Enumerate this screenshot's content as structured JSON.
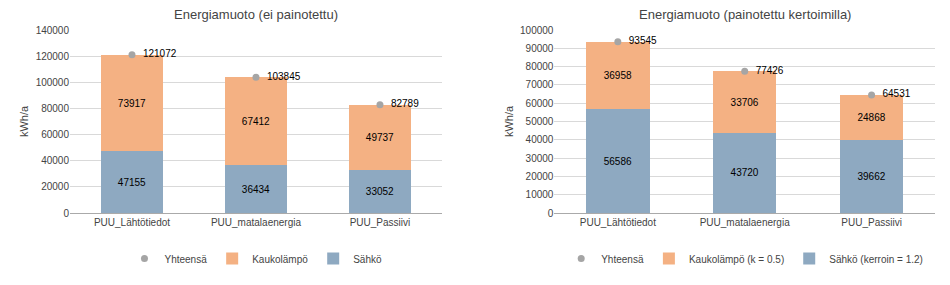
{
  "chart_data": [
    {
      "type": "bar",
      "stacked": true,
      "title": "Energiamuoto (ei painotettu)",
      "categories": [
        "PUU_Lähtötiedot",
        "PUU_matalaenergia",
        "PUU_Passiivi"
      ],
      "series": [
        {
          "name": "Sähkö",
          "type": "bar",
          "color": "#8EA9C1",
          "values": [
            47155,
            36434,
            33052
          ]
        },
        {
          "name": "Kaukolämpö",
          "type": "bar",
          "color": "#F4B183",
          "values": [
            73917,
            67412,
            49737
          ]
        },
        {
          "name": "Yhteensä",
          "type": "scatter",
          "marker": "circle",
          "color": "#A5A5A5",
          "values": [
            121072,
            103845,
            82789
          ]
        }
      ],
      "ylim": [
        0,
        140000
      ],
      "yticks": [
        0,
        20000,
        40000,
        60000,
        80000,
        100000,
        120000,
        140000
      ],
      "ylabel": "kWh/a",
      "grid": true,
      "legend": "bottom",
      "data_labels": true
    },
    {
      "type": "bar",
      "stacked": true,
      "title": "Energiamuoto (painotettu kertoimilla)",
      "categories": [
        "PUU_Lähtötiedot",
        "PUU_matalaenergia",
        "PUU_Passiivi"
      ],
      "series": [
        {
          "name": "Sähkö (kerroin = 1.2)",
          "type": "bar",
          "color": "#8EA9C1",
          "values": [
            56586,
            43720,
            39662
          ]
        },
        {
          "name": "Kaukolämpö (k = 0.5)",
          "type": "bar",
          "color": "#F4B183",
          "values": [
            36958,
            33706,
            24868
          ]
        },
        {
          "name": "Yhteensä",
          "type": "scatter",
          "marker": "circle",
          "color": "#A5A5A5",
          "values": [
            93545,
            77426,
            64531
          ]
        }
      ],
      "ylim": [
        0,
        100000
      ],
      "yticks": [
        0,
        10000,
        20000,
        30000,
        40000,
        50000,
        60000,
        70000,
        80000,
        90000,
        100000
      ],
      "ylabel": "kWh/a",
      "grid": true,
      "legend": "bottom",
      "data_labels": true
    }
  ]
}
